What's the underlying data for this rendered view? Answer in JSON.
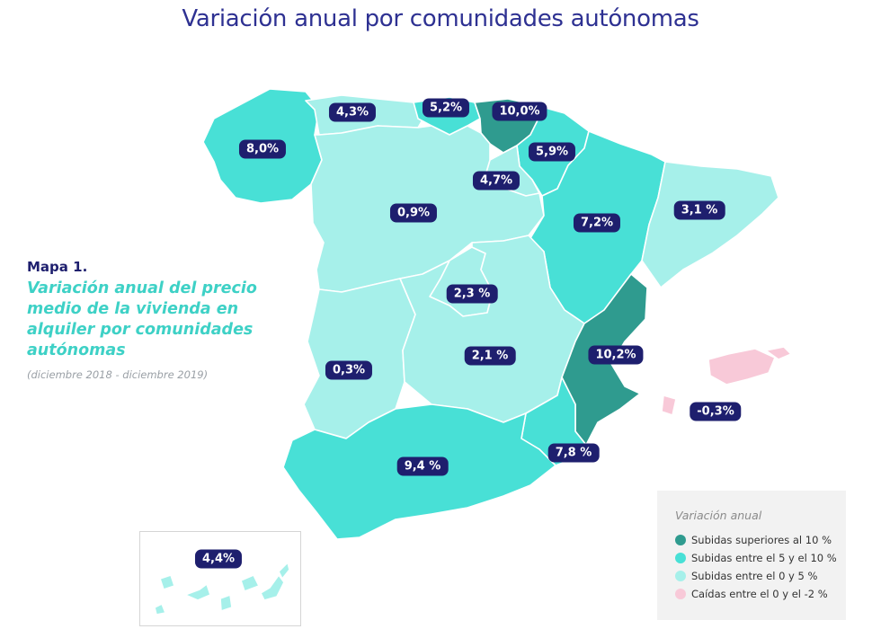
{
  "title": "Variación anual por comunidades autónomas",
  "sidebar": {
    "map_number": "Mapa 1.",
    "subtitle": "Variación anual del precio medio de la vivienda en alquiler por comunidades autónomas",
    "period": "(diciembre 2018 - diciembre 2019)"
  },
  "legend": {
    "title": "Variación anual",
    "items": [
      {
        "label": "Subidas superiores al 10 %",
        "color": "#2f9b8f"
      },
      {
        "label": "Subidas entre el 5 y el 10 %",
        "color": "#48e0d6"
      },
      {
        "label": "Subidas entre el 0 y 5 %",
        "color": "#a6f0ea"
      },
      {
        "label": "Caídas entre el 0 y el -2 %",
        "color": "#f8c9d8"
      }
    ]
  },
  "regions": [
    {
      "name": "Galicia",
      "value": "8,0%",
      "category": 1
    },
    {
      "name": "Asturias",
      "value": "4,3%",
      "category": 2
    },
    {
      "name": "Cantabria",
      "value": "5,2%",
      "category": 1
    },
    {
      "name": "País Vasco",
      "value": "10,0%",
      "category": 0
    },
    {
      "name": "Navarra",
      "value": "5,9%",
      "category": 1
    },
    {
      "name": "La Rioja",
      "value": "4,7%",
      "category": 2
    },
    {
      "name": "Castilla y León",
      "value": "0,9%",
      "category": 2
    },
    {
      "name": "Aragón",
      "value": "7,2%",
      "category": 1
    },
    {
      "name": "Cataluña",
      "value": "3,1 %",
      "category": 2
    },
    {
      "name": "Madrid",
      "value": "2,3 %",
      "category": 2
    },
    {
      "name": "Extremadura",
      "value": "0,3%",
      "category": 2
    },
    {
      "name": "Castilla-La Mancha",
      "value": "2,1 %",
      "category": 2
    },
    {
      "name": "Comunidad Valenciana",
      "value": "10,2%",
      "category": 0
    },
    {
      "name": "Baleares",
      "value": "-0,3%",
      "category": 3
    },
    {
      "name": "Murcia",
      "value": "7,8 %",
      "category": 1
    },
    {
      "name": "Andalucía",
      "value": "9,4 %",
      "category": 1
    },
    {
      "name": "Canarias",
      "value": "4,4%",
      "category": 2
    }
  ]
}
